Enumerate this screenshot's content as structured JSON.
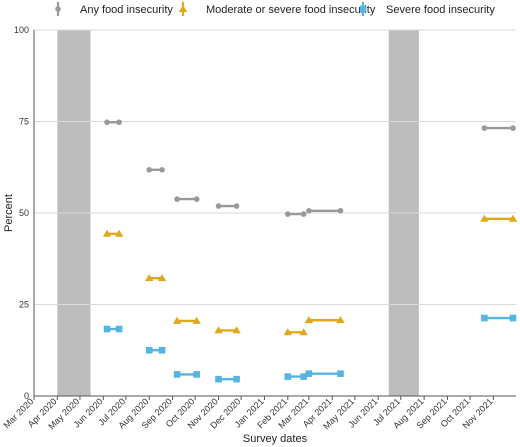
{
  "chart_data": {
    "type": "scatter",
    "xlabel": "Survey dates",
    "ylabel": "Percent",
    "ylim": [
      0,
      100
    ],
    "yticks": [
      0,
      25,
      50,
      75,
      100
    ],
    "xlim": [
      "2020-03-01",
      "2021-12-01"
    ],
    "x_tick_labels": [
      "Mar 2020",
      "Apr 2020",
      "May 2020",
      "Jun 2020",
      "Jul 2020",
      "Aug 2020",
      "Sep 2020",
      "Oct 2020",
      "Nov 2020",
      "Dec 2020",
      "Jan 2021",
      "Feb 2021",
      "Mar 2021",
      "Apr 2021",
      "May 2021",
      "Jun 2021",
      "Jul 2021",
      "Aug 2021",
      "Sep 2021",
      "Oct 2021",
      "Nov 2021"
    ],
    "x_tick_dates": [
      "2020-03-01",
      "2020-04-01",
      "2020-05-01",
      "2020-06-01",
      "2020-07-01",
      "2020-08-01",
      "2020-09-01",
      "2020-10-01",
      "2020-11-01",
      "2020-12-01",
      "2021-01-01",
      "2021-02-01",
      "2021-03-01",
      "2021-04-01",
      "2021-05-01",
      "2021-06-01",
      "2021-07-01",
      "2021-08-01",
      "2021-09-01",
      "2021-10-01",
      "2021-11-01"
    ],
    "grid": "horizontal",
    "legend_position": "top",
    "shaded_periods": [
      {
        "start": "2020-04-01",
        "end": "2020-05-15"
      },
      {
        "start": "2021-06-15",
        "end": "2021-07-25"
      }
    ],
    "series": [
      {
        "name": "Any food insecurity",
        "color": "#999999",
        "marker": "circle",
        "points": [
          {
            "start": "2020-06-06",
            "end": "2020-06-22",
            "value": 74.8
          },
          {
            "start": "2020-08-01",
            "end": "2020-08-18",
            "value": 61.8
          },
          {
            "start": "2020-09-07",
            "end": "2020-10-03",
            "value": 53.8
          },
          {
            "start": "2020-11-01",
            "end": "2020-11-25",
            "value": 51.9
          },
          {
            "start": "2021-02-01",
            "end": "2021-02-22",
            "value": 49.7
          },
          {
            "start": "2021-03-01",
            "end": "2021-04-12",
            "value": 50.6
          },
          {
            "start": "2021-10-20",
            "end": "2021-11-27",
            "value": 73.2
          }
        ]
      },
      {
        "name": "Moderate or severe food insecurity",
        "color": "#E0A81C",
        "marker": "triangle",
        "points": [
          {
            "start": "2020-06-06",
            "end": "2020-06-22",
            "value": 44.3
          },
          {
            "start": "2020-08-01",
            "end": "2020-08-18",
            "value": 32.2
          },
          {
            "start": "2020-09-07",
            "end": "2020-10-03",
            "value": 20.5
          },
          {
            "start": "2020-11-01",
            "end": "2020-11-25",
            "value": 17.9
          },
          {
            "start": "2021-02-01",
            "end": "2021-02-22",
            "value": 17.4
          },
          {
            "start": "2021-03-01",
            "end": "2021-04-12",
            "value": 20.7
          },
          {
            "start": "2021-10-20",
            "end": "2021-11-27",
            "value": 48.4
          }
        ]
      },
      {
        "name": "Severe food insecurity",
        "color": "#56B4E0",
        "marker": "square",
        "points": [
          {
            "start": "2020-06-06",
            "end": "2020-06-22",
            "value": 18.3
          },
          {
            "start": "2020-08-01",
            "end": "2020-08-18",
            "value": 12.5
          },
          {
            "start": "2020-09-07",
            "end": "2020-10-03",
            "value": 5.9
          },
          {
            "start": "2020-11-01",
            "end": "2020-11-25",
            "value": 4.6
          },
          {
            "start": "2021-02-01",
            "end": "2021-02-22",
            "value": 5.3
          },
          {
            "start": "2021-03-01",
            "end": "2021-04-12",
            "value": 6.1
          },
          {
            "start": "2021-10-20",
            "end": "2021-11-27",
            "value": 21.3
          }
        ]
      }
    ]
  }
}
